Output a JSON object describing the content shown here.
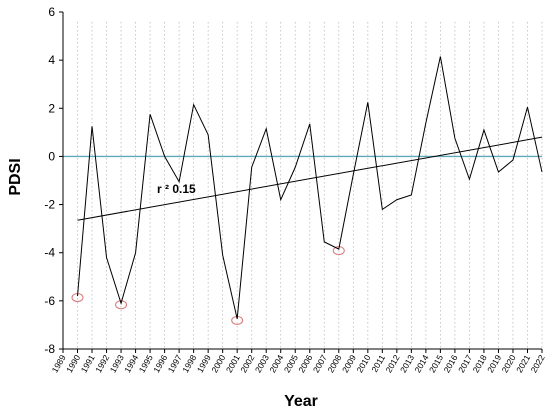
{
  "chart_data": {
    "type": "line",
    "xlabel": "Year",
    "ylabel": "PDSI",
    "x_ticks": [
      "1989",
      "1990",
      "1991",
      "1992",
      "1993",
      "1994",
      "1995",
      "1996",
      "1997",
      "1998",
      "1999",
      "2000",
      "2001",
      "2002",
      "2003",
      "2004",
      "2005",
      "2006",
      "2007",
      "2008",
      "2009",
      "2010",
      "2011",
      "2012",
      "2013",
      "2014",
      "2015",
      "2016",
      "2017",
      "2018",
      "2019",
      "2020",
      "2021",
      "2022"
    ],
    "ylim": [
      -8,
      6
    ],
    "yticks": [
      -8,
      -6,
      -4,
      -2,
      0,
      2,
      4,
      6
    ],
    "series": [
      {
        "x": [
          1990,
          1991,
          1992,
          1993,
          1994,
          1995,
          1996,
          1997,
          1998,
          1999,
          2000,
          2001,
          2002,
          2003,
          2004,
          2005,
          2006,
          2007,
          2008,
          2009,
          2010,
          2011,
          2012,
          2013,
          2014,
          2015,
          2016,
          2017,
          2018,
          2019,
          2020,
          2021,
          2022
        ],
        "values": [
          -5.8,
          1.25,
          -4.2,
          -6.1,
          -4.0,
          1.75,
          0.0,
          -1.05,
          2.15,
          0.9,
          -4.1,
          -6.75,
          -0.45,
          1.15,
          -1.8,
          -0.45,
          1.35,
          -3.55,
          -3.85,
          -0.75,
          2.25,
          -2.2,
          -1.8,
          -1.6,
          1.4,
          4.15,
          0.75,
          -0.95,
          1.1,
          -0.65,
          -0.15,
          2.05,
          -0.65
        ],
        "color": "#000000"
      }
    ],
    "trendline": {
      "x": [
        1990,
        2022
      ],
      "values": [
        -2.65,
        0.8
      ],
      "color": "#000000"
    },
    "reference_line": {
      "value": 0,
      "color": "#5fa8b8"
    },
    "annotation": "r ²  0.15",
    "highlighted_points": [
      1990,
      1993,
      2001,
      2008
    ],
    "highlight_color": "#d98080",
    "grid": "vertical dotted at each year",
    "legend": "none"
  }
}
